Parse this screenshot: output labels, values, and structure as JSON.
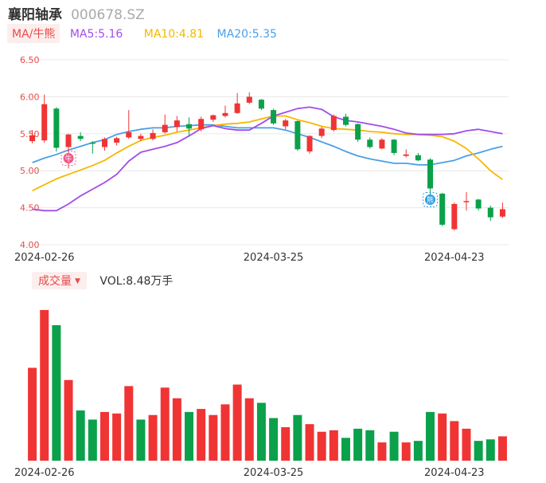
{
  "header": {
    "name": "襄阳轴承",
    "code": "000678.SZ"
  },
  "ma_legend": {
    "tag": "MA/牛熊",
    "items": [
      {
        "label": "MA5:5.16",
        "color": "#a24de8"
      },
      {
        "label": "MA10:4.81",
        "color": "#f5b800"
      },
      {
        "label": "MA20:5.35",
        "color": "#4a9fe8"
      }
    ]
  },
  "volume_legend": {
    "tag": "成交量",
    "label": "VOL:8.48万手"
  },
  "colors": {
    "up": "#f03434",
    "down": "#0aa14a",
    "grid": "#e8e8e8",
    "tick": "#e84b4b",
    "ma5": "#a24de8",
    "ma10": "#f5b800",
    "ma20": "#4a9fe8"
  },
  "chart_data": [
    {
      "type": "candlestick",
      "title": "",
      "y_ticks": [
        "6.50",
        "6.00",
        "5.50",
        "5.00",
        "4.50",
        "4.00"
      ],
      "ylim": [
        4.0,
        6.5
      ],
      "x_ticks": [
        "2024-02-26",
        "2024-03-25",
        "2024-04-23"
      ],
      "x_tick_index": [
        1,
        20,
        35
      ],
      "markers": [
        {
          "index": 3,
          "label": "牛",
          "color": "#f05a8a"
        },
        {
          "index": 33,
          "label": "熊",
          "color": "#2f9be8"
        }
      ],
      "candles": [
        {
          "open": 5.4,
          "close": 5.48,
          "high": 5.55,
          "low": 5.37
        },
        {
          "open": 5.41,
          "close": 5.9,
          "high": 6.03,
          "low": 5.38
        },
        {
          "open": 5.84,
          "close": 5.31,
          "high": 5.86,
          "low": 5.26
        },
        {
          "open": 5.32,
          "close": 5.49,
          "high": 5.5,
          "low": 5.03
        },
        {
          "open": 5.47,
          "close": 5.43,
          "high": 5.52,
          "low": 5.4
        },
        {
          "open": 5.38,
          "close": 5.37,
          "high": 5.4,
          "low": 5.23
        },
        {
          "open": 5.32,
          "close": 5.43,
          "high": 5.45,
          "low": 5.27
        },
        {
          "open": 5.38,
          "close": 5.44,
          "high": 5.46,
          "low": 5.34
        },
        {
          "open": 5.45,
          "close": 5.52,
          "high": 5.82,
          "low": 5.43
        },
        {
          "open": 5.43,
          "close": 5.47,
          "high": 5.5,
          "low": 5.4
        },
        {
          "open": 5.43,
          "close": 5.51,
          "high": 5.56,
          "low": 5.41
        },
        {
          "open": 5.52,
          "close": 5.62,
          "high": 5.76,
          "low": 5.5
        },
        {
          "open": 5.59,
          "close": 5.68,
          "high": 5.74,
          "low": 5.53
        },
        {
          "open": 5.63,
          "close": 5.57,
          "high": 5.72,
          "low": 5.46
        },
        {
          "open": 5.56,
          "close": 5.7,
          "high": 5.73,
          "low": 5.53
        },
        {
          "open": 5.69,
          "close": 5.75,
          "high": 5.76,
          "low": 5.66
        },
        {
          "open": 5.74,
          "close": 5.78,
          "high": 5.88,
          "low": 5.72
        },
        {
          "open": 5.78,
          "close": 5.91,
          "high": 6.05,
          "low": 5.77
        },
        {
          "open": 5.92,
          "close": 6.0,
          "high": 6.06,
          "low": 5.9
        },
        {
          "open": 5.96,
          "close": 5.84,
          "high": 5.97,
          "low": 5.82
        },
        {
          "open": 5.82,
          "close": 5.64,
          "high": 5.84,
          "low": 5.62
        },
        {
          "open": 5.6,
          "close": 5.68,
          "high": 5.7,
          "low": 5.56
        },
        {
          "open": 5.67,
          "close": 5.29,
          "high": 5.68,
          "low": 5.27
        },
        {
          "open": 5.26,
          "close": 5.47,
          "high": 5.48,
          "low": 5.23
        },
        {
          "open": 5.47,
          "close": 5.57,
          "high": 5.59,
          "low": 5.44
        },
        {
          "open": 5.55,
          "close": 5.74,
          "high": 5.76,
          "low": 5.53
        },
        {
          "open": 5.73,
          "close": 5.62,
          "high": 5.77,
          "low": 5.6
        },
        {
          "open": 5.63,
          "close": 5.42,
          "high": 5.64,
          "low": 5.39
        },
        {
          "open": 5.42,
          "close": 5.32,
          "high": 5.45,
          "low": 5.3
        },
        {
          "open": 5.3,
          "close": 5.42,
          "high": 5.44,
          "low": 5.29
        },
        {
          "open": 5.42,
          "close": 5.24,
          "high": 5.43,
          "low": 5.21
        },
        {
          "open": 5.2,
          "close": 5.22,
          "high": 5.29,
          "low": 5.18
        },
        {
          "open": 5.21,
          "close": 5.14,
          "high": 5.24,
          "low": 5.13
        },
        {
          "open": 5.15,
          "close": 4.76,
          "high": 5.17,
          "low": 4.65
        },
        {
          "open": 4.69,
          "close": 4.27,
          "high": 4.7,
          "low": 4.25
        },
        {
          "open": 4.21,
          "close": 4.55,
          "high": 4.57,
          "low": 4.19
        },
        {
          "open": 4.58,
          "close": 4.59,
          "high": 4.71,
          "low": 4.46
        },
        {
          "open": 4.61,
          "close": 4.49,
          "high": 4.62,
          "low": 4.46
        },
        {
          "open": 4.5,
          "close": 4.37,
          "high": 4.53,
          "low": 4.32
        },
        {
          "open": 4.38,
          "close": 4.48,
          "high": 4.57,
          "low": 4.36
        }
      ],
      "ma5": [
        4.48,
        4.46,
        4.46,
        4.55,
        4.66,
        4.75,
        4.84,
        4.95,
        5.13,
        5.25,
        5.29,
        5.33,
        5.38,
        5.47,
        5.57,
        5.61,
        5.57,
        5.55,
        5.55,
        5.64,
        5.74,
        5.79,
        5.84,
        5.86,
        5.83,
        5.73,
        5.68,
        5.66,
        5.63,
        5.6,
        5.56,
        5.51,
        5.49,
        5.49,
        5.49,
        5.5,
        5.54,
        5.56,
        5.53,
        5.5
      ],
      "ma10": [
        4.73,
        4.81,
        4.89,
        4.95,
        5.01,
        5.07,
        5.14,
        5.24,
        5.33,
        5.41,
        5.45,
        5.48,
        5.52,
        5.55,
        5.58,
        5.61,
        5.63,
        5.64,
        5.66,
        5.7,
        5.74,
        5.74,
        5.69,
        5.65,
        5.6,
        5.57,
        5.56,
        5.55,
        5.53,
        5.52,
        5.5,
        5.49,
        5.49,
        5.48,
        5.46,
        5.4,
        5.3,
        5.16,
        5.0,
        4.88
      ],
      "ma20": [
        5.11,
        5.17,
        5.22,
        5.28,
        5.33,
        5.38,
        5.42,
        5.49,
        5.53,
        5.56,
        5.58,
        5.58,
        5.6,
        5.61,
        5.62,
        5.62,
        5.6,
        5.58,
        5.58,
        5.58,
        5.58,
        5.55,
        5.5,
        5.45,
        5.39,
        5.33,
        5.26,
        5.2,
        5.16,
        5.13,
        5.1,
        5.1,
        5.08,
        5.08,
        5.11,
        5.14,
        5.2,
        5.24,
        5.29,
        5.33
      ]
    },
    {
      "type": "bar",
      "title": "",
      "x_ticks": [
        "2024-02-26",
        "2024-03-25",
        "2024-04-23"
      ],
      "x_tick_index": [
        1,
        20,
        35
      ],
      "ylim": [
        0,
        100
      ],
      "values": [
        61,
        99,
        89,
        53,
        33,
        27,
        32,
        31,
        49,
        27,
        30,
        48,
        41,
        32,
        34,
        30,
        37,
        50,
        41,
        38,
        28,
        22,
        30,
        24,
        19,
        20,
        15,
        21,
        20,
        12,
        19,
        12,
        13,
        32,
        31,
        26,
        21,
        13,
        14,
        16
      ],
      "direction": [
        "up",
        "up",
        "down",
        "up",
        "down",
        "down",
        "up",
        "up",
        "up",
        "down",
        "up",
        "up",
        "up",
        "down",
        "up",
        "up",
        "up",
        "up",
        "up",
        "down",
        "down",
        "up",
        "down",
        "up",
        "up",
        "up",
        "down",
        "down",
        "down",
        "up",
        "down",
        "up",
        "down",
        "down",
        "up",
        "up",
        "up",
        "down",
        "down",
        "up"
      ]
    }
  ]
}
